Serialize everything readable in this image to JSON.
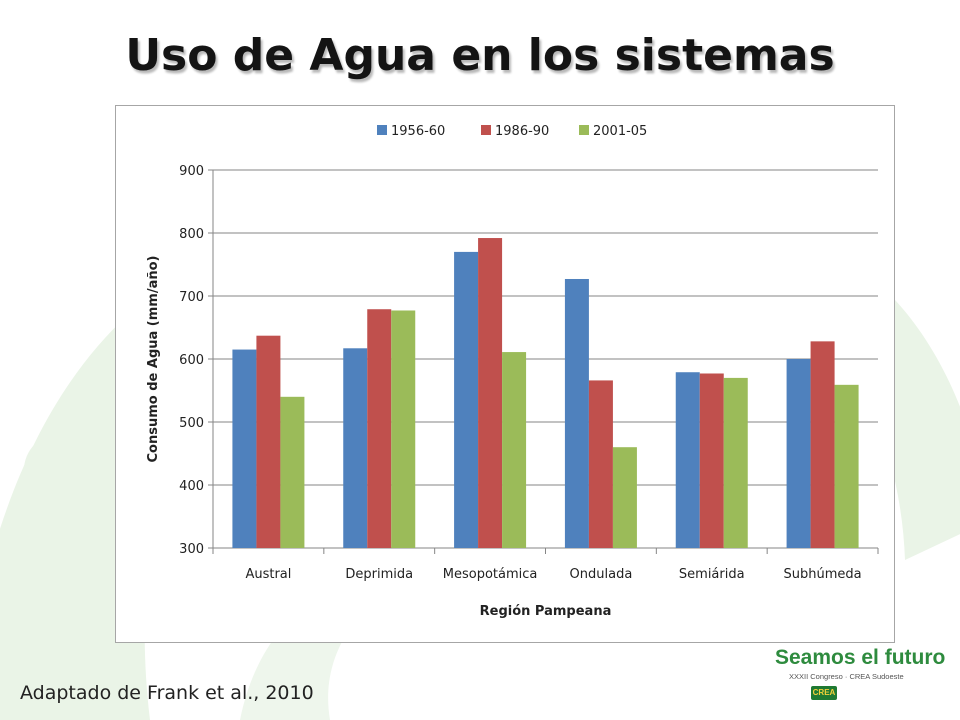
{
  "slide": {
    "title": "Uso de Agua en los sistemas",
    "citation": "Adaptado de Frank et al., 2010"
  },
  "logo": {
    "title": "Seamos el futuro",
    "subtitle": "XXXII Congreso · CREA Sudoeste",
    "badge": "CREA"
  },
  "colors": {
    "series": [
      "#4f81bd",
      "#c0504d",
      "#9bbb59"
    ],
    "decoration": "#e9f3e6"
  },
  "chart_data": {
    "type": "bar",
    "title": "",
    "xlabel": "Región Pampeana",
    "ylabel": "Consumo de Agua (mm/año)",
    "categories": [
      "Austral",
      "Deprimida",
      "Mesopotámica",
      "Ondulada",
      "Semiárida",
      "Subhúmeda"
    ],
    "series": [
      {
        "name": "1956-60",
        "values": [
          615,
          617,
          770,
          727,
          579,
          600
        ]
      },
      {
        "name": "1986-90",
        "values": [
          637,
          679,
          792,
          566,
          577,
          628
        ]
      },
      {
        "name": "2001-05",
        "values": [
          540,
          677,
          611,
          460,
          570,
          559
        ]
      }
    ],
    "ylim": [
      300,
      900
    ],
    "yticks": [
      300,
      400,
      500,
      600,
      700,
      800,
      900
    ],
    "grid": true,
    "legend_position": "top"
  }
}
